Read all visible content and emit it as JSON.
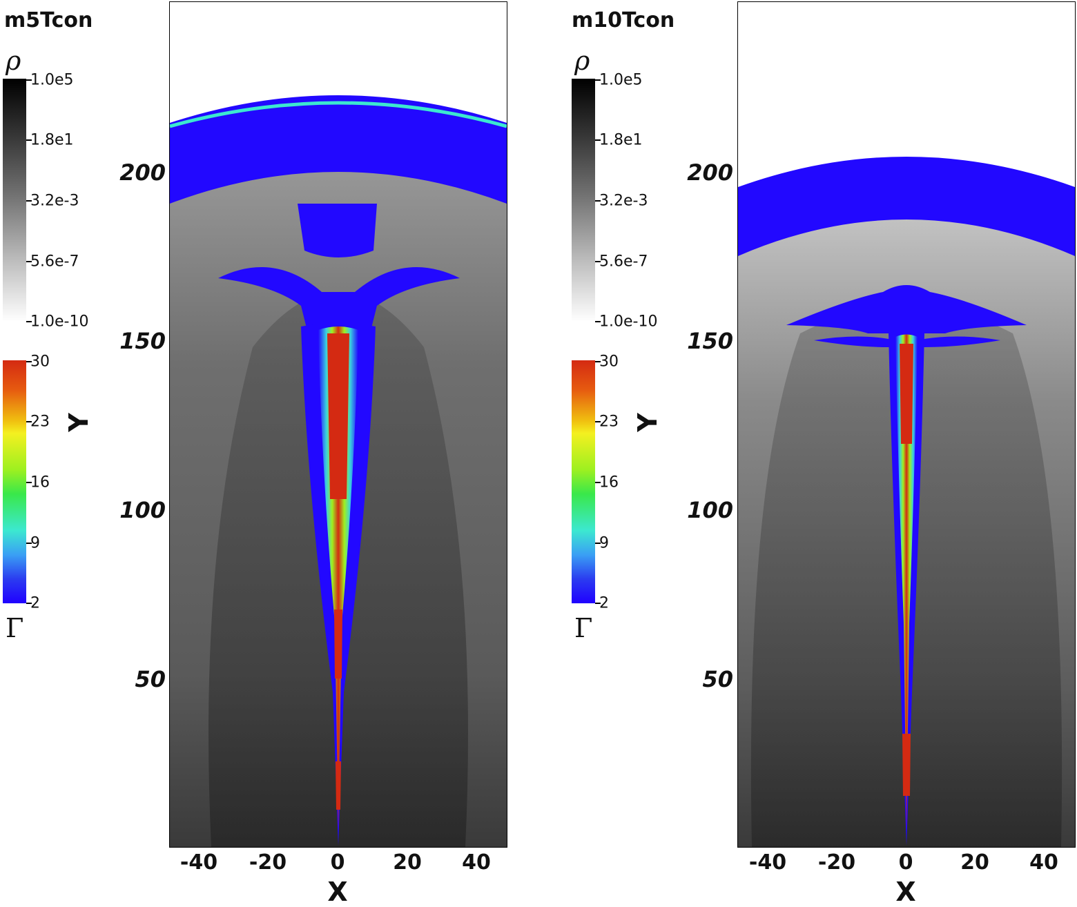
{
  "colors": {
    "shell_blue": "#2208ff",
    "jet_red": "#d42a12",
    "ambient_gray": "#6e6e6e",
    "dark_gray": "#2a2a2a"
  },
  "colorbar_rho": {
    "symbol": "ρ",
    "ticks": [
      "1.0e5",
      "1.8e1",
      "3.2e-3",
      "5.6e-7",
      "1.0e-10"
    ]
  },
  "colorbar_gamma": {
    "symbol": "Γ",
    "ticks": [
      "30",
      "23",
      "16",
      "9",
      "2"
    ]
  },
  "axes": {
    "xlabel": "X",
    "ylabel": "Y",
    "xticks": [
      "-40",
      "-20",
      "0",
      "20",
      "40"
    ],
    "yticks": [
      "200",
      "150",
      "100",
      "50"
    ]
  },
  "panels": [
    {
      "title": "m5Tcon"
    },
    {
      "title": "m10Tcon"
    }
  ]
}
